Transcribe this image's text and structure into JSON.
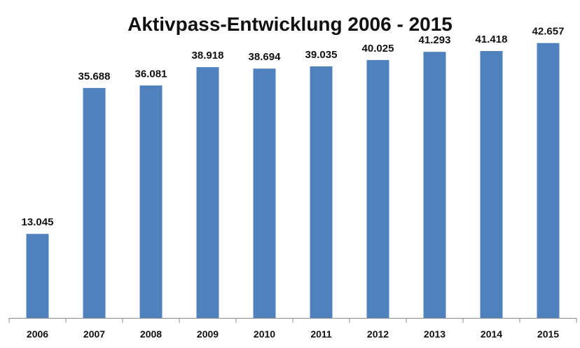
{
  "chart_data": {
    "type": "bar",
    "title": "Aktivpass-Entwicklung  2006 - 2015",
    "xlabel": "",
    "ylabel": "",
    "categories": [
      "2006",
      "2007",
      "2008",
      "2009",
      "2010",
      "2011",
      "2012",
      "2013",
      "2014",
      "2015"
    ],
    "values": [
      13045,
      35688,
      36081,
      38918,
      38694,
      39035,
      40025,
      41293,
      41418,
      42657
    ],
    "value_labels": [
      "13.045",
      "35.688",
      "36.081",
      "38.918",
      "38.694",
      "39.035",
      "40.025",
      "41.293",
      "41.418",
      "42.657"
    ],
    "ylim": [
      0,
      45000
    ],
    "grid": false,
    "legend": "none",
    "colors": {
      "bar": "#4f81bd",
      "axis": "#8c8c8c",
      "text": "#111111"
    }
  }
}
